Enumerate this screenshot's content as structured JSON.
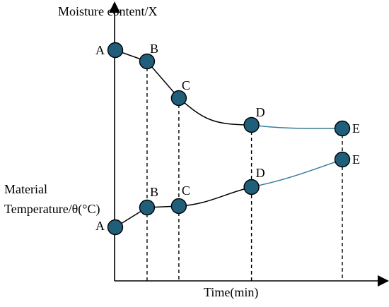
{
  "chart_data": {
    "type": "line",
    "ylabel_top": "Moisture content/X",
    "ylabel_lower_line1": "Material",
    "ylabel_lower_line2": "Temperature/θ(°C)",
    "xlabel": "Time(min)",
    "point_color": "#1f5f7a",
    "drying_segment_color": "#3a7d99",
    "moisture_points": [
      {
        "label": "A",
        "t": 0.0
      },
      {
        "label": "B",
        "t": 0.14
      },
      {
        "label": "C",
        "t": 0.28
      },
      {
        "label": "D",
        "t": 0.6
      },
      {
        "label": "E",
        "t": 1.0
      }
    ],
    "temperature_points": [
      {
        "label": "A",
        "t": 0.0
      },
      {
        "label": "B",
        "t": 0.14
      },
      {
        "label": "C",
        "t": 0.28
      },
      {
        "label": "D",
        "t": 0.6
      },
      {
        "label": "E",
        "t": 1.0
      }
    ],
    "grid": false,
    "dashed_drop_lines": true
  }
}
